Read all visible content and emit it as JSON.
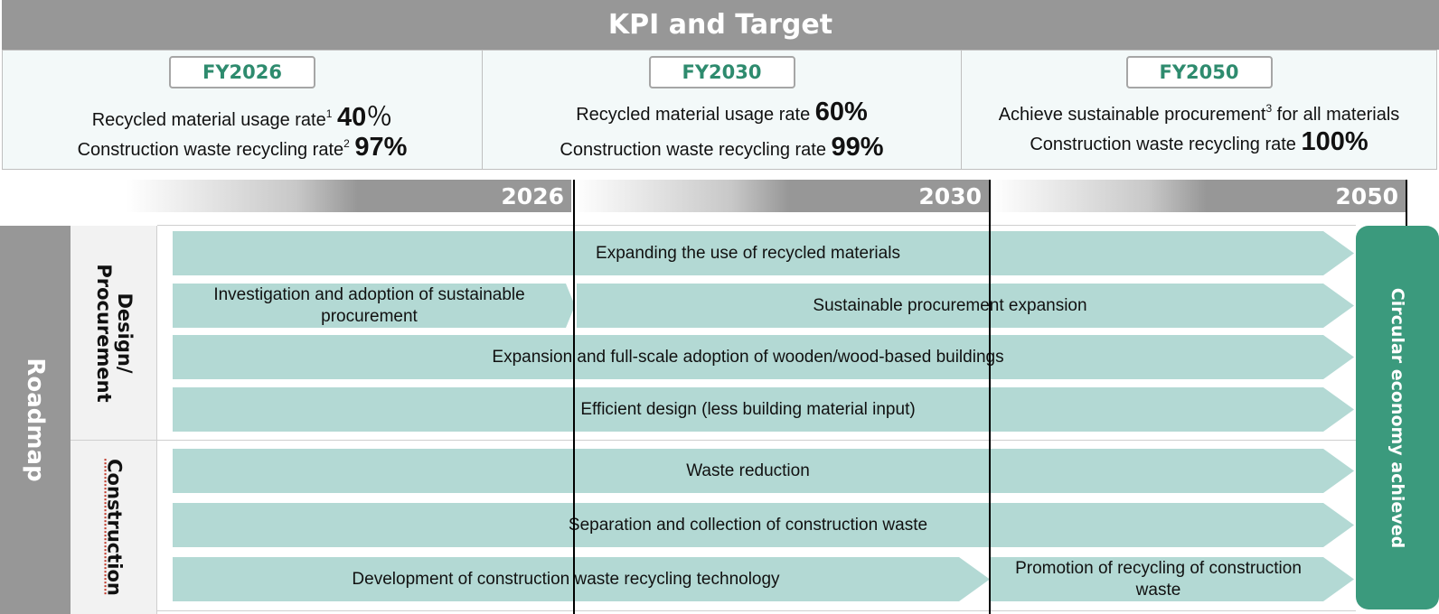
{
  "header": {
    "title": "KPI and Target"
  },
  "kpi": [
    {
      "fy": "FY2026",
      "line1": {
        "text": "Recycled material usage rate",
        "sup": "1",
        "value": "40",
        "unit": "％"
      },
      "line2": {
        "text": "Construction waste recycling rate",
        "sup": "2",
        "value": "97%"
      }
    },
    {
      "fy": "FY2030",
      "line1": {
        "text": "Recycled material usage rate",
        "value": "60%"
      },
      "line2": {
        "text": "Construction waste recycling rate",
        "value": "99%"
      }
    },
    {
      "fy": "FY2050",
      "line1": {
        "text_before": "Achieve sustainable procurement",
        "sup": "3",
        "text_after": " for all materials"
      },
      "line2": {
        "text": "Construction waste recycling rate",
        "value": "100%"
      }
    }
  ],
  "timeline": [
    "2026",
    "2030",
    "2050"
  ],
  "roadmap": {
    "label": "Roadmap",
    "categories": {
      "design": "Design/ Procurement",
      "construction": "Construction"
    },
    "design_items": {
      "recycled": "Expanding the use of recycled materials",
      "investigation": "Investigation and adoption of sustainable procurement",
      "sustainable": "Sustainable procurement expansion",
      "wooden": "Expansion and full-scale adoption of wooden/wood-based buildings",
      "efficient": "Efficient design (less building material input)"
    },
    "construction_items": {
      "waste_reduction": "Waste reduction",
      "separation": "Separation and collection of construction waste",
      "development": "Development of construction waste recycling technology",
      "promotion": "Promotion of recycling of construction waste"
    },
    "goal": "Circular economy achieved"
  },
  "colors": {
    "header_gray": "#979797",
    "arrow_fill": "#b3d9d4",
    "goal_green": "#3b9a7d",
    "fy_text": "#2e8b6e"
  }
}
